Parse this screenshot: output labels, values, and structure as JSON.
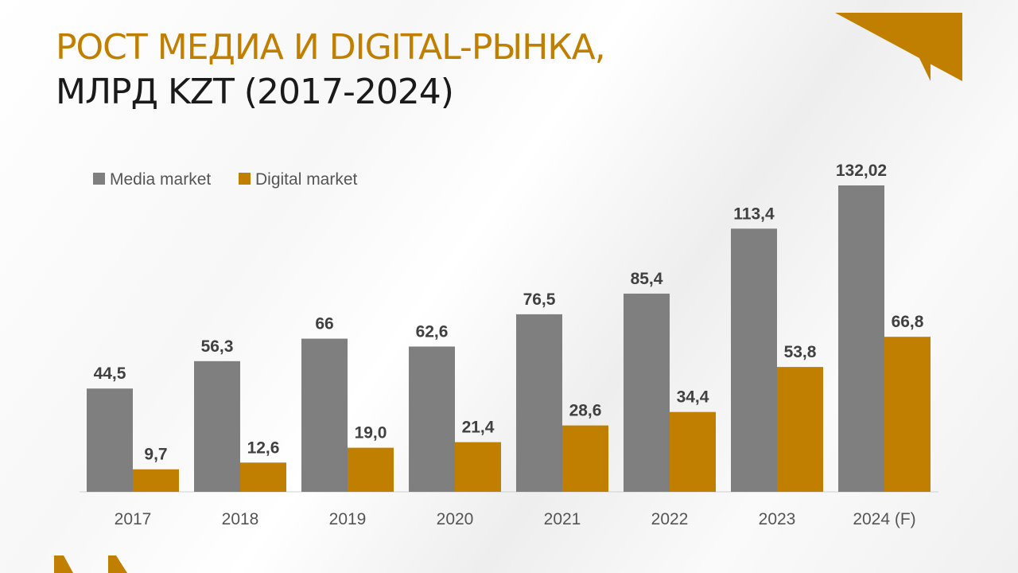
{
  "title": {
    "line1": "РОСТ МЕДИА И DIGITAL-РЫНКА,",
    "line2": "МЛРД KZT (2017-2024)"
  },
  "colors": {
    "accent": "#c17f00",
    "dark_text": "#1a1a1a",
    "media_bar": "#7f7f7f",
    "digital_bar": "#c17f00",
    "label_text": "#404040",
    "axis_text": "#555555"
  },
  "chart_data": {
    "type": "bar",
    "categories": [
      "2017",
      "2018",
      "2019",
      "2020",
      "2021",
      "2022",
      "2023",
      "2024 (F)"
    ],
    "series": [
      {
        "name": "Media market",
        "values": [
          44.5,
          56.3,
          66,
          62.6,
          76.5,
          85.4,
          113.4,
          132.02
        ],
        "labels": [
          "44,5",
          "56,3",
          "66",
          "62,6",
          "76,5",
          "85,4",
          "113,4",
          "132,02"
        ],
        "color": "#7f7f7f"
      },
      {
        "name": "Digital market",
        "values": [
          9.7,
          12.6,
          19.0,
          21.4,
          28.6,
          34.4,
          53.8,
          66.8
        ],
        "labels": [
          "9,7",
          "12,6",
          "19,0",
          "21,4",
          "28,6",
          "34,4",
          "53,8",
          "66,8"
        ],
        "color": "#c17f00"
      }
    ],
    "legend_position": "top-left",
    "grid": false,
    "ylim": [
      0,
      132.02
    ]
  }
}
